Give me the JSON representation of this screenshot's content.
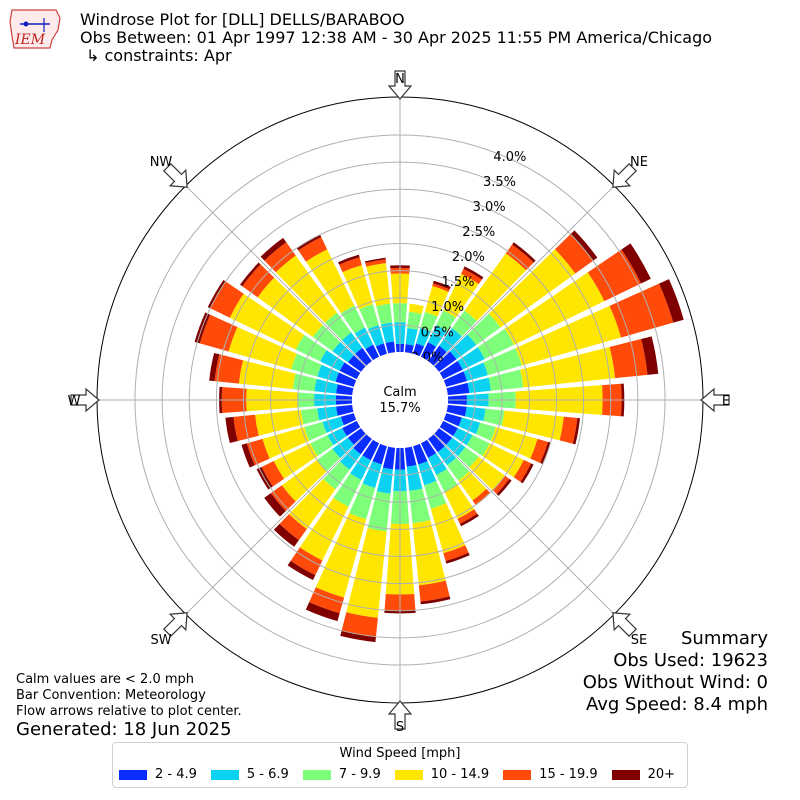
{
  "header": {
    "title_line1": "Windrose Plot for [DLL] DELLS/BARABOO",
    "title_line2": "Obs Between: 01 Apr 1997 12:38 AM - 30 Apr 2025 11:55 PM America/Chicago",
    "title_line3": "↳ constraints: Apr",
    "logo_text": "IEM"
  },
  "notes": {
    "line1": "Calm values are < 2.0 mph",
    "line2": "Bar Convention: Meteorology",
    "line3": "Flow arrows relative to plot center.",
    "generated": "Generated: 18 Jun 2025"
  },
  "summary": {
    "title": "Summary",
    "obs_used": "Obs Used: 19623",
    "obs_without_wind": "Obs Without Wind: 0",
    "avg_speed": "Avg Speed: 8.4 mph"
  },
  "calm": {
    "label": "Calm",
    "value": "15.7%"
  },
  "colors": {
    "speed_bins": [
      "#0a2cff",
      "#0ad2f0",
      "#7dff7a",
      "#ffe600",
      "#ff4a0a",
      "#800000"
    ],
    "grid": "#b0b0b0"
  },
  "chart_data": {
    "type": "windrose",
    "legend_title": "Wind Speed [mph]",
    "speed_bins": [
      "2 - 4.9",
      "5 - 6.9",
      "7 - 9.9",
      "10 - 14.9",
      "15 - 19.9",
      "20+"
    ],
    "directions": [
      0,
      10,
      20,
      30,
      40,
      50,
      60,
      70,
      80,
      90,
      100,
      110,
      120,
      130,
      140,
      150,
      160,
      170,
      180,
      190,
      200,
      210,
      220,
      230,
      240,
      250,
      260,
      270,
      280,
      290,
      300,
      310,
      320,
      330,
      340,
      350
    ],
    "compass_labels": [
      "N",
      "NE",
      "E",
      "SE",
      "S",
      "SW",
      "W",
      "NW"
    ],
    "radial_ticks": [
      "0.0%",
      "0.5%",
      "1.0%",
      "1.5%",
      "2.0%",
      "2.5%",
      "3.0%",
      "3.5%",
      "4.0%"
    ],
    "rmax_percent": 4.7,
    "calm_percent": 15.7,
    "cumulative_percent": [
      [
        0.15,
        0.55,
        0.9,
        1.45,
        1.55,
        1.6
      ],
      [
        0.15,
        0.45,
        0.75,
        0.9,
        0.9,
        0.9
      ],
      [
        0.2,
        0.5,
        0.8,
        1.3,
        1.35,
        1.4
      ],
      [
        0.3,
        0.65,
        0.95,
        1.7,
        1.8,
        1.85
      ],
      [
        0.35,
        0.75,
        1.15,
        2.45,
        2.65,
        2.7
      ],
      [
        0.4,
        0.85,
        1.4,
        3.1,
        3.5,
        3.6
      ],
      [
        0.4,
        0.85,
        1.45,
        3.3,
        4.05,
        4.25
      ],
      [
        0.4,
        0.8,
        1.45,
        3.35,
        4.35,
        4.55
      ],
      [
        0.4,
        0.8,
        1.4,
        3.1,
        3.7,
        3.9
      ],
      [
        0.35,
        0.75,
        1.25,
        2.85,
        3.2,
        3.25
      ],
      [
        0.35,
        0.7,
        1.05,
        2.15,
        2.4,
        2.45
      ],
      [
        0.3,
        0.65,
        0.95,
        1.75,
        1.95,
        2.0
      ],
      [
        0.3,
        0.6,
        0.95,
        1.65,
        1.8,
        1.85
      ],
      [
        0.3,
        0.6,
        0.9,
        1.5,
        1.6,
        1.65
      ],
      [
        0.3,
        0.6,
        0.95,
        1.4,
        1.5,
        1.5
      ],
      [
        0.3,
        0.65,
        1.0,
        1.55,
        1.65,
        1.7
      ],
      [
        0.35,
        0.75,
        1.2,
        2.05,
        2.2,
        2.25
      ],
      [
        0.35,
        0.8,
        1.4,
        2.55,
        2.85,
        2.9
      ],
      [
        0.4,
        0.8,
        1.4,
        2.7,
        3.0,
        3.05
      ],
      [
        0.4,
        0.85,
        1.55,
        3.15,
        3.5,
        3.6
      ],
      [
        0.35,
        0.8,
        1.4,
        2.9,
        3.2,
        3.35
      ],
      [
        0.35,
        0.75,
        1.3,
        2.4,
        2.7,
        2.8
      ],
      [
        0.35,
        0.7,
        1.15,
        2.05,
        2.3,
        2.45
      ],
      [
        0.3,
        0.65,
        1.0,
        1.8,
        2.05,
        2.2
      ],
      [
        0.3,
        0.6,
        0.95,
        1.7,
        1.95,
        2.05
      ],
      [
        0.25,
        0.6,
        0.95,
        1.75,
        2.05,
        2.15
      ],
      [
        0.3,
        0.65,
        0.95,
        1.8,
        2.2,
        2.35
      ],
      [
        0.3,
        0.7,
        1.0,
        1.95,
        2.4,
        2.45
      ],
      [
        0.3,
        0.7,
        1.1,
        2.1,
        2.55,
        2.65
      ],
      [
        0.35,
        0.7,
        1.2,
        2.4,
        2.95,
        3.05
      ],
      [
        0.35,
        0.75,
        1.25,
        2.6,
        3.0,
        3.05
      ],
      [
        0.3,
        0.65,
        1.1,
        2.35,
        2.7,
        2.75
      ],
      [
        0.3,
        0.65,
        1.1,
        2.4,
        2.7,
        2.8
      ],
      [
        0.25,
        0.6,
        1.05,
        2.2,
        2.45,
        2.5
      ],
      [
        0.2,
        0.55,
        0.95,
        1.7,
        1.85,
        1.9
      ],
      [
        0.2,
        0.55,
        0.9,
        1.65,
        1.72,
        1.75
      ]
    ]
  }
}
